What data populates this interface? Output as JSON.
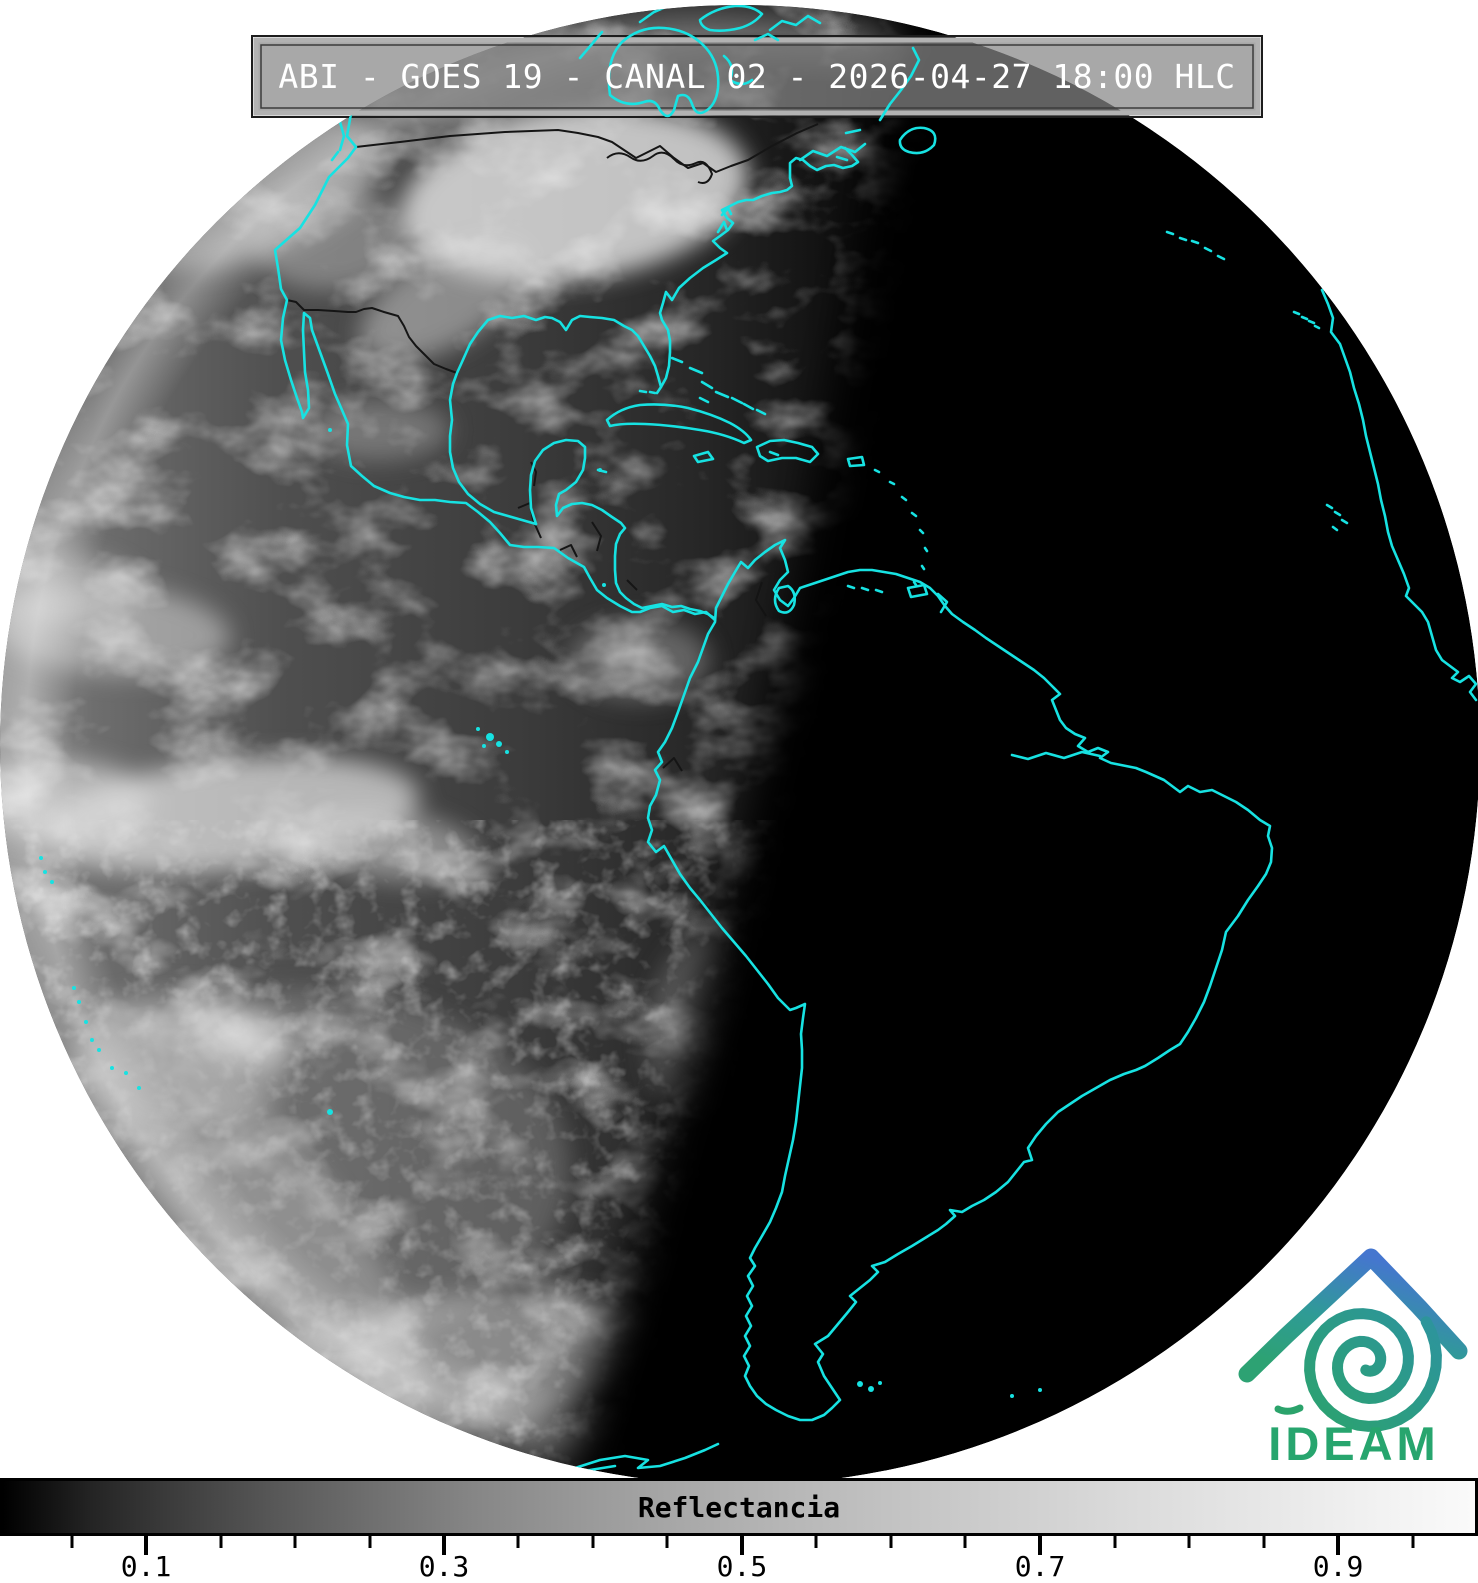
{
  "title_bar": {
    "text": "ABI - GOES 19 - CANAL 02 - 2026-04-27 18:00 HLC"
  },
  "colorbar": {
    "label": "Reflectancia",
    "major_ticks": [
      {
        "value": 0.1,
        "label": "0.1"
      },
      {
        "value": 0.3,
        "label": "0.3"
      },
      {
        "value": 0.5,
        "label": "0.5"
      },
      {
        "value": 0.7,
        "label": "0.7"
      },
      {
        "value": 0.9,
        "label": "0.9"
      }
    ],
    "minor_tick_values": [
      0.05,
      0.15,
      0.2,
      0.25,
      0.35,
      0.4,
      0.45,
      0.55,
      0.6,
      0.65,
      0.75,
      0.8,
      0.85,
      0.95
    ],
    "range_min": 0,
    "range_max": 1,
    "gradient_left_color": "#000000",
    "gradient_right_color": "#fbfbfb"
  },
  "logo": {
    "text": "IDEAM",
    "text_color": "#27a56e",
    "roof_top_color": "#4576cf",
    "roof_base_color": "#2da273",
    "spiral_color": "#2b9c8a"
  },
  "scene": {
    "coastline_color": "#17e2e2",
    "night_color": "#000000",
    "background_color": "#ffffff"
  }
}
